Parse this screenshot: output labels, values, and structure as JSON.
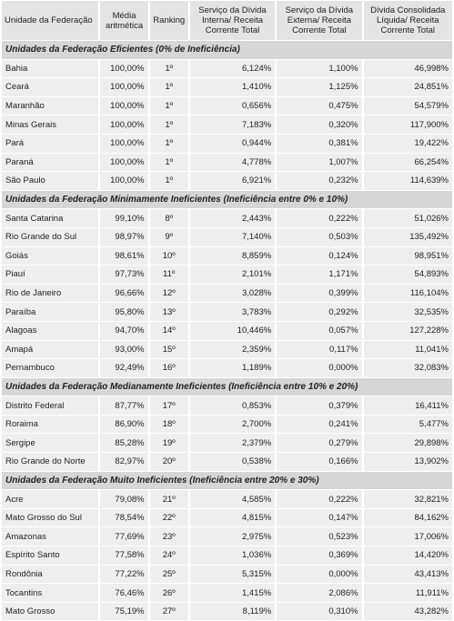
{
  "table": {
    "header": [
      "Unidade da Federação",
      "Média aritmética",
      "Ranking",
      "Serviço da Dívida Interna/ Receita Corrente Total",
      "Serviço da Dívida Externa/ Receita Corrente Total",
      "Dívida Consolidada Líquida/ Receita Corrente Total"
    ],
    "sections": [
      {
        "title": "Unidades da Federação Eficientes (0% de Ineficiência)",
        "rows": [
          [
            "Bahia",
            "100,00%",
            "1º",
            "6,124%",
            "1,100%",
            "46,998%"
          ],
          [
            "Ceará",
            "100,00%",
            "1º",
            "1,410%",
            "1,125%",
            "24,851%"
          ],
          [
            "Maranhão",
            "100,00%",
            "1º",
            "0,656%",
            "0,475%",
            "54,579%"
          ],
          [
            "Minas Gerais",
            "100,00%",
            "1º",
            "7,183%",
            "0,320%",
            "117,900%"
          ],
          [
            "Pará",
            "100,00%",
            "1º",
            "0,944%",
            "0,381%",
            "19,422%"
          ],
          [
            "Paraná",
            "100,00%",
            "1º",
            "4,778%",
            "1,007%",
            "66,254%"
          ],
          [
            "São Paulo",
            "100,00%",
            "1º",
            "6,921%",
            "0,232%",
            "114,639%"
          ]
        ]
      },
      {
        "title": "Unidades da Federação Minimamente Ineficientes (Ineficiência entre 0% e 10%)",
        "rows": [
          [
            "Santa Catarina",
            "99,10%",
            "8º",
            "2,443%",
            "0,222%",
            "51,026%"
          ],
          [
            "Rio Grande do Sul",
            "98,97%",
            "9º",
            "7,140%",
            "0,503%",
            "135,492%"
          ],
          [
            "Goiás",
            "98,61%",
            "10º",
            "8,859%",
            "0,124%",
            "98,951%"
          ],
          [
            "Piauí",
            "97,73%",
            "11º",
            "2,101%",
            "1,171%",
            "54,893%"
          ],
          [
            "Rio de Janeiro",
            "96,66%",
            "12º",
            "3,028%",
            "0,399%",
            "116,104%"
          ],
          [
            "Paraíba",
            "95,80%",
            "13º",
            "3,783%",
            "0,292%",
            "32,535%"
          ],
          [
            "Alagoas",
            "94,70%",
            "14º",
            "10,446%",
            "0,057%",
            "127,228%"
          ],
          [
            "Amapá",
            "93,00%",
            "15º",
            "2,359%",
            "0,117%",
            "11,041%"
          ],
          [
            "Pernambuco",
            "92,49%",
            "16º",
            "1,189%",
            "0,000%",
            "32,083%"
          ]
        ]
      },
      {
        "title": "Unidades da Federação Medianamente Ineficientes (Ineficiência entre 10% e 20%)",
        "rows": [
          [
            "Distrito Federal",
            "87,77%",
            "17º",
            "0,853%",
            "0,379%",
            "16,411%"
          ],
          [
            "Roraima",
            "86,90%",
            "18º",
            "2,700%",
            "0,241%",
            "5,477%"
          ],
          [
            "Sergipe",
            "85,28%",
            "19º",
            "2,379%",
            "0,279%",
            "29,898%"
          ],
          [
            "Rio Grande do Norte",
            "82,97%",
            "20º",
            "0,538%",
            "0,166%",
            "13,902%"
          ]
        ]
      },
      {
        "title": "Unidades da Federação Muito Ineficientes (Ineficiência entre 20% e 30%)",
        "rows": [
          [
            "Acre",
            "79,08%",
            "21º",
            "4,585%",
            "0,222%",
            "32,821%"
          ],
          [
            "Mato Grosso do Sul",
            "78,54%",
            "22º",
            "4,815%",
            "0,147%",
            "84,162%"
          ],
          [
            "Amazonas",
            "77,69%",
            "23º",
            "2,975%",
            "0,523%",
            "17,006%"
          ],
          [
            "Espírito Santo",
            "77,58%",
            "24º",
            "1,036%",
            "0,369%",
            "14,420%"
          ],
          [
            "Rondônia",
            "77,22%",
            "25º",
            "5,315%",
            "0,000%",
            "43,413%"
          ],
          [
            "Tocantins",
            "76,46%",
            "26º",
            "1,415%",
            "2,086%",
            "11,911%"
          ],
          [
            "Mato Grosso",
            "75,19%",
            "27º",
            "8,119%",
            "0,310%",
            "43,282%"
          ]
        ]
      }
    ]
  }
}
